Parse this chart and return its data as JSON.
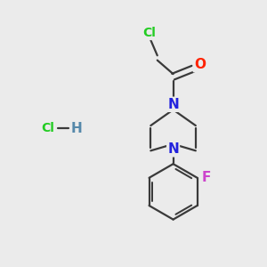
{
  "background_color": "#ebebeb",
  "bond_color": "#3a3a3a",
  "bond_width": 1.6,
  "atom_colors": {
    "Cl_top": "#22cc22",
    "O": "#ff2200",
    "N": "#2222dd",
    "F": "#cc44cc",
    "HCl_Cl": "#22cc22",
    "HCl_H": "#5588aa"
  },
  "figsize": [
    3.0,
    3.0
  ],
  "dpi": 100
}
